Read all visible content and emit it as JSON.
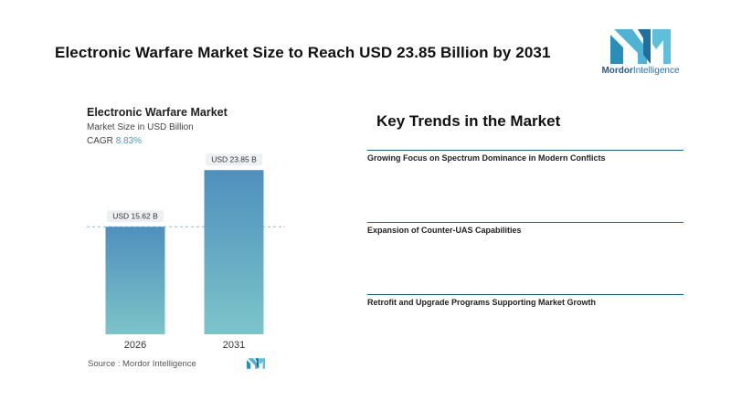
{
  "headline": "Electronic Warfare Market Size to Reach USD 23.85 Billion by 2031",
  "logo": {
    "brand_bold": "Mordor",
    "brand_rest": "Intelligence",
    "icon": "mordor-logo-icon",
    "color": "#2a8fb8"
  },
  "chart_data": {
    "type": "bar",
    "title": "Electronic Warfare Market",
    "subtitle": "Market Size in USD Billion",
    "cagr_label": "CAGR",
    "cagr_value": "8.83%",
    "categories": [
      "2026",
      "2031"
    ],
    "values": [
      15.62,
      23.85
    ],
    "value_labels": [
      "USD 15.62 B",
      "USD 23.85 B"
    ],
    "ylim": [
      0,
      26
    ],
    "grid": false,
    "reference_line_at": 15.62,
    "bar_gradient": [
      "#4f8fbd",
      "#7cc4c9"
    ],
    "xlabel": "",
    "ylabel": ""
  },
  "source": "Source :  Mordor Intelligence",
  "trends": {
    "title": "Key Trends in the Market",
    "items": [
      {
        "label": "Growing Focus on Spectrum Dominance in Modern Conflicts"
      },
      {
        "label": "Expansion of Counter-UAS Capabilities"
      },
      {
        "label": "Retrofit and Upgrade Programs Supporting Market Growth"
      }
    ]
  }
}
